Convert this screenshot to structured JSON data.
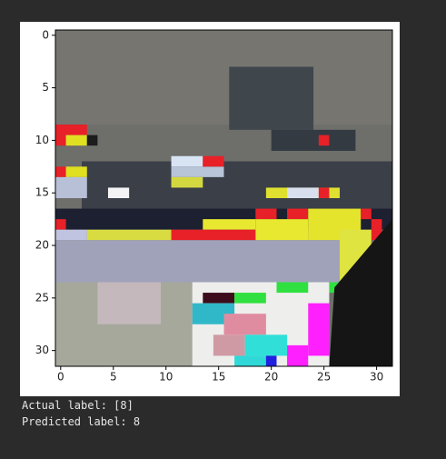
{
  "chart_data": {
    "type": "image",
    "xlim": [
      -0.5,
      31.5
    ],
    "ylim": [
      31.5,
      -0.5
    ],
    "xticks": [
      0,
      5,
      10,
      15,
      20,
      25,
      30
    ],
    "yticks": [
      0,
      5,
      10,
      15,
      20,
      25,
      30
    ]
  },
  "output": {
    "lines": [
      "Actual label: [8]",
      "Predicted label: 8"
    ]
  }
}
